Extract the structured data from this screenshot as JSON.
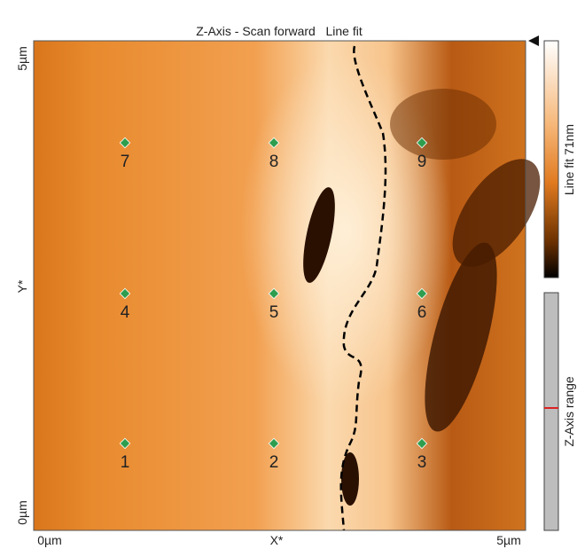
{
  "header": {
    "title": "Z-Axis - Scan forward   Line fit"
  },
  "y_axis": {
    "top": "5µm",
    "label": "Y*",
    "bottom": "0µm"
  },
  "x_axis": {
    "left": "0µm",
    "label": "X*",
    "right": "5µm"
  },
  "colorbar": {
    "label": "Line fit 71nm"
  },
  "range_bar": {
    "label": "Z-Axis range"
  },
  "markers": [
    "1",
    "2",
    "3",
    "4",
    "5",
    "6",
    "7",
    "8",
    "9"
  ]
}
